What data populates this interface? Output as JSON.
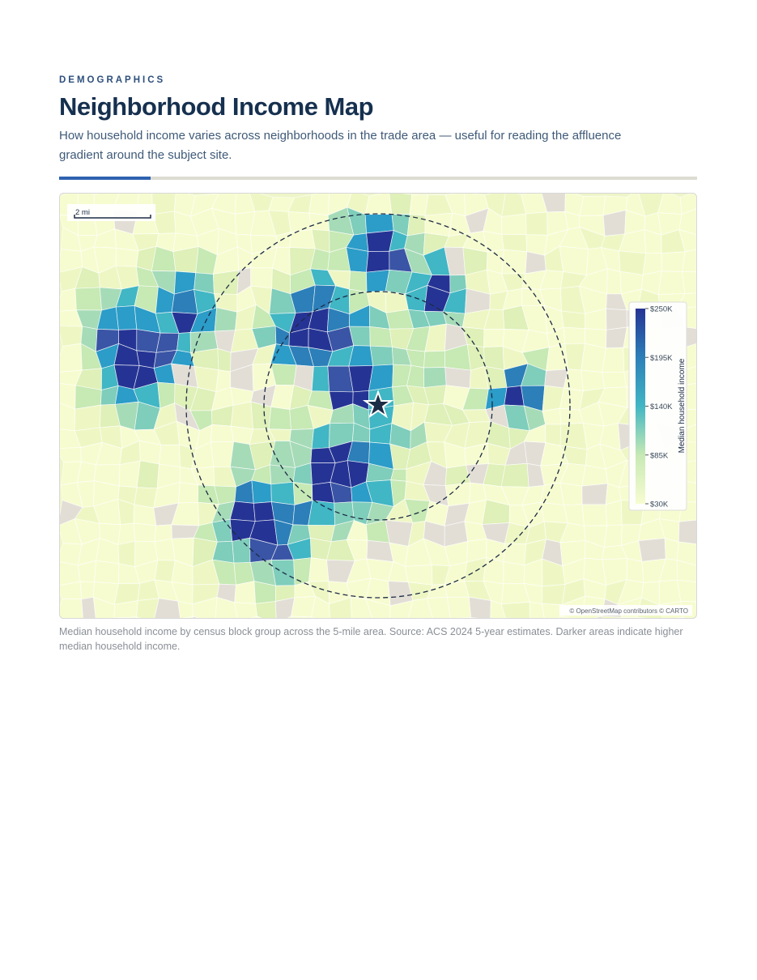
{
  "header": {
    "eyebrow": "DEMOGRAPHICS",
    "title": "Neighborhood Income Map",
    "subtitle": "How household income varies across neighborhoods in the trade area — useful for reading the affluence gradient around the subject site."
  },
  "map": {
    "scale_label": "2 mi",
    "legend": {
      "title": "Median household income",
      "range": [
        30000,
        250000
      ],
      "ticks": [
        {
          "value": 250000,
          "label": "$250K"
        },
        {
          "value": 195000,
          "label": "$195K"
        },
        {
          "value": 140000,
          "label": "$140K"
        },
        {
          "value": 85000,
          "label": "$85K"
        },
        {
          "value": 30000,
          "label": "$30K"
        }
      ]
    },
    "attribution": "© OpenStreetMap contributors © CARTO"
  },
  "caption": "Median household income by census block group across the 5-mile area. Source: ACS 2024 5-year estimates. Darker areas indicate higher median household income."
}
